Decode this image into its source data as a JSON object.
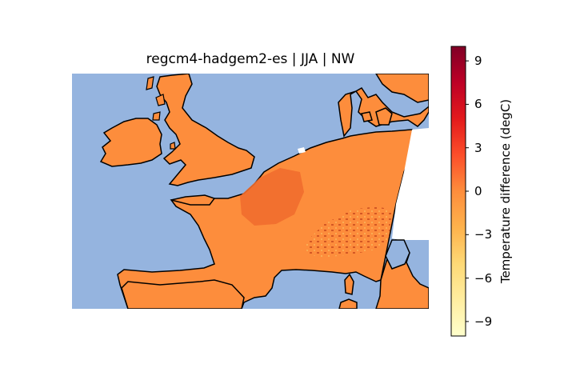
{
  "map": {
    "title": "regcm4-hadgem2-es | JJA | NW",
    "ocean_color": "#95b4df",
    "land_fill_color": "#fd8d3c",
    "land_fill_dark_color": "#f16d2e",
    "coastline_color": "#000000"
  },
  "colorbar": {
    "label": "Temperature difference (degC)",
    "range": [
      -10,
      10
    ],
    "ticks": [
      {
        "value": 9,
        "label": "9"
      },
      {
        "value": 6,
        "label": "6"
      },
      {
        "value": 3,
        "label": "3"
      },
      {
        "value": 0,
        "label": "0"
      },
      {
        "value": -3,
        "label": "−3"
      },
      {
        "value": -6,
        "label": "−6"
      },
      {
        "value": -9,
        "label": "−9"
      }
    ],
    "colormap": [
      "#ffffcc",
      "#ffeda0",
      "#fed976",
      "#feb24c",
      "#fd8d3c",
      "#fc4e2a",
      "#e31a1c",
      "#bd0026",
      "#800026"
    ]
  }
}
